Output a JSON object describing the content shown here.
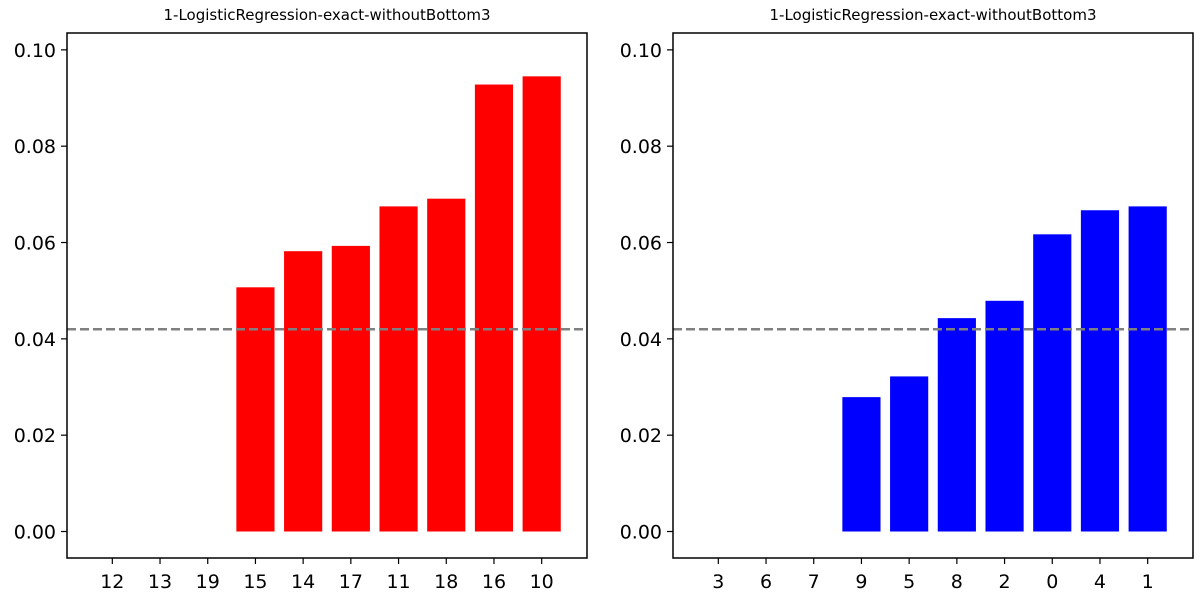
{
  "chart_data": [
    {
      "type": "bar",
      "title": "1-LogisticRegression-exact-withoutBottom3",
      "categories": [
        "12",
        "13",
        "19",
        "15",
        "14",
        "17",
        "11",
        "18",
        "16",
        "10"
      ],
      "values": [
        0,
        0,
        0,
        0.0507,
        0.0582,
        0.0593,
        0.0675,
        0.0691,
        0.0928,
        0.0945
      ],
      "color": "#ff0000",
      "reference_line": {
        "value": 0.042,
        "style": "dashed",
        "color": "#808080"
      },
      "ylim": [
        -0.0055,
        0.1035
      ],
      "yticks": [
        "0.00",
        "0.02",
        "0.04",
        "0.06",
        "0.08",
        "0.10"
      ],
      "xlabel": "",
      "ylabel": "",
      "grid": false
    },
    {
      "type": "bar",
      "title": "1-LogisticRegression-exact-withoutBottom3",
      "categories": [
        "3",
        "6",
        "7",
        "9",
        "5",
        "8",
        "2",
        "0",
        "4",
        "1"
      ],
      "values": [
        0,
        0,
        0,
        0.0279,
        0.0322,
        0.0443,
        0.0479,
        0.0617,
        0.0667,
        0.0675
      ],
      "color": "#0000ff",
      "reference_line": {
        "value": 0.042,
        "style": "dashed",
        "color": "#808080"
      },
      "ylim": [
        -0.0055,
        0.1035
      ],
      "yticks": [
        "0.00",
        "0.02",
        "0.04",
        "0.06",
        "0.08",
        "0.10"
      ],
      "xlabel": "",
      "ylabel": "",
      "grid": false
    }
  ]
}
